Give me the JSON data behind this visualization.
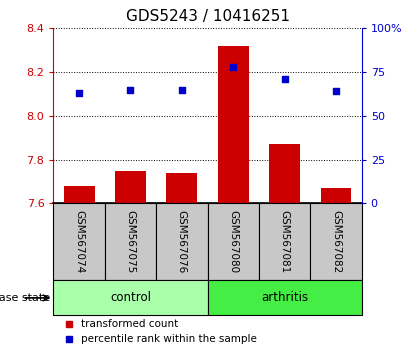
{
  "title": "GDS5243 / 10416251",
  "samples": [
    "GSM567074",
    "GSM567075",
    "GSM567076",
    "GSM567080",
    "GSM567081",
    "GSM567082"
  ],
  "transformed_count": [
    7.68,
    7.75,
    7.74,
    8.32,
    7.87,
    7.67
  ],
  "percentile_rank": [
    63,
    65,
    65,
    78,
    71,
    64
  ],
  "ylim_left": [
    7.6,
    8.4
  ],
  "ylim_right": [
    0,
    100
  ],
  "yticks_left": [
    7.6,
    7.8,
    8.0,
    8.2,
    8.4
  ],
  "yticks_right": [
    0,
    25,
    50,
    75,
    100
  ],
  "ytick_labels_right": [
    "0",
    "25",
    "50",
    "75",
    "100%"
  ],
  "groups": [
    {
      "label": "control",
      "indices": [
        0,
        1,
        2
      ],
      "color": "#aaffaa"
    },
    {
      "label": "arthritis",
      "indices": [
        3,
        4,
        5
      ],
      "color": "#44ee44"
    }
  ],
  "bar_color": "#cc0000",
  "dot_color": "#0000cc",
  "bar_baseline": 7.6,
  "xlabel_bottom": "disease state",
  "legend_items": [
    {
      "label": "transformed count",
      "color": "#cc0000"
    },
    {
      "label": "percentile rank within the sample",
      "color": "#0000cc"
    }
  ],
  "sample_area_bg": "#c8c8c8",
  "figsize": [
    4.11,
    3.54
  ],
  "dpi": 100
}
